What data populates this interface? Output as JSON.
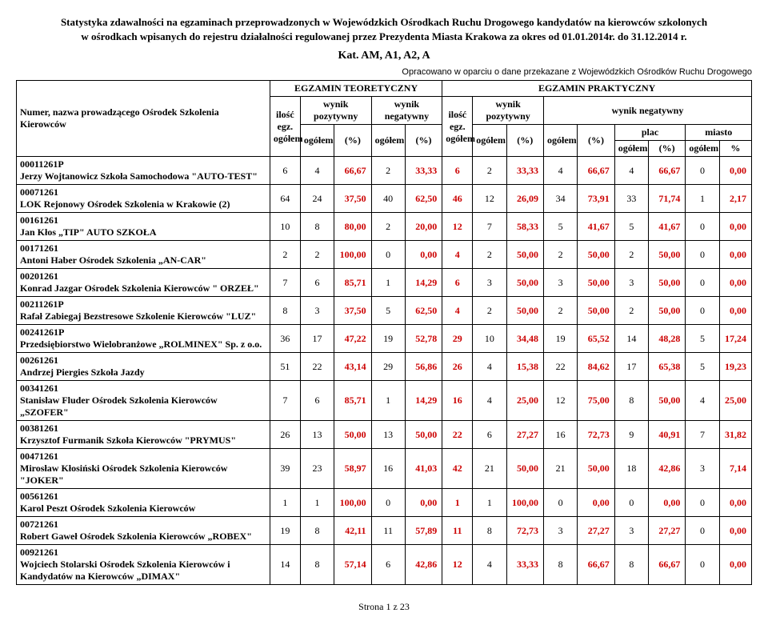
{
  "header": {
    "title_line1": "Statystyka zdawalności na egzaminach przeprowadzonych w Wojewódzkich Ośrodkach Ruchu Drogowego kandydatów na kierowców szkolonych",
    "title_line2": "w ośrodkach wpisanych do rejestru działalności regulowanej przez Prezydenta Miasta Krakowa za okres od 01.01.2014r. do 31.12.2014 r.",
    "category": "Kat. AM, A1, A2, A",
    "source_note": "Opracowano w oparciu o dane przekazane z Wojewódzkich Ośrodków Ruchu Drogowego"
  },
  "columns": {
    "name_header": "Numer, nazwa prowadzącego Ośrodek Szkolenia Kierowców",
    "teor": "EGZAMIN TEORETYCZNY",
    "prakt": "EGZAMIN PRAKTYCZNY",
    "ilosc_egz": "ilość egz. ogółem",
    "wynik_poz": "wynik pozytywny",
    "wynik_neg": "wynik negatywny",
    "ogolem": "ogółem",
    "pct": "(%)",
    "plac": "plac",
    "miasto": "miasto",
    "pct_sym": "%"
  },
  "rows": [
    {
      "name": "00011261P\nJerzy Wojtanowicz Szkoła Samochodowa \"AUTO-TEST\"",
      "t_total": "6",
      "t_poz": "4",
      "t_poz_p": "66,67",
      "t_neg": "2",
      "t_neg_p": "33,33",
      "p_total": "6",
      "p_poz": "2",
      "p_poz_p": "33,33",
      "p_neg": "4",
      "p_neg_p": "66,67",
      "plac": "4",
      "plac_p": "66,67",
      "miasto": "0",
      "miasto_p": "0,00"
    },
    {
      "name": "00071261\nLOK Rejonowy Ośrodek Szkolenia w Krakowie (2)",
      "t_total": "64",
      "t_poz": "24",
      "t_poz_p": "37,50",
      "t_neg": "40",
      "t_neg_p": "62,50",
      "p_total": "46",
      "p_poz": "12",
      "p_poz_p": "26,09",
      "p_neg": "34",
      "p_neg_p": "73,91",
      "plac": "33",
      "plac_p": "71,74",
      "miasto": "1",
      "miasto_p": "2,17"
    },
    {
      "name": "00161261\nJan Kłos „TIP\" AUTO SZKOŁA",
      "t_total": "10",
      "t_poz": "8",
      "t_poz_p": "80,00",
      "t_neg": "2",
      "t_neg_p": "20,00",
      "p_total": "12",
      "p_poz": "7",
      "p_poz_p": "58,33",
      "p_neg": "5",
      "p_neg_p": "41,67",
      "plac": "5",
      "plac_p": "41,67",
      "miasto": "0",
      "miasto_p": "0,00"
    },
    {
      "name": "00171261\nAntoni Haber Ośrodek Szkolenia „AN-CAR\"",
      "t_total": "2",
      "t_poz": "2",
      "t_poz_p": "100,00",
      "t_neg": "0",
      "t_neg_p": "0,00",
      "p_total": "4",
      "p_poz": "2",
      "p_poz_p": "50,00",
      "p_neg": "2",
      "p_neg_p": "50,00",
      "plac": "2",
      "plac_p": "50,00",
      "miasto": "0",
      "miasto_p": "0,00"
    },
    {
      "name": "00201261\nKonrad Jazgar Ośrodek Szkolenia Kierowców \" ORZEŁ\"",
      "t_total": "7",
      "t_poz": "6",
      "t_poz_p": "85,71",
      "t_neg": "1",
      "t_neg_p": "14,29",
      "p_total": "6",
      "p_poz": "3",
      "p_poz_p": "50,00",
      "p_neg": "3",
      "p_neg_p": "50,00",
      "plac": "3",
      "plac_p": "50,00",
      "miasto": "0",
      "miasto_p": "0,00"
    },
    {
      "name": "00211261P\nRafał Zabiegaj Bezstresowe Szkolenie Kierowców \"LUZ\"",
      "t_total": "8",
      "t_poz": "3",
      "t_poz_p": "37,50",
      "t_neg": "5",
      "t_neg_p": "62,50",
      "p_total": "4",
      "p_poz": "2",
      "p_poz_p": "50,00",
      "p_neg": "2",
      "p_neg_p": "50,00",
      "plac": "2",
      "plac_p": "50,00",
      "miasto": "0",
      "miasto_p": "0,00"
    },
    {
      "name": "00241261P\nPrzedsiębiorstwo Wielobranżowe „ROLMINEX\" Sp. z o.o.",
      "t_total": "36",
      "t_poz": "17",
      "t_poz_p": "47,22",
      "t_neg": "19",
      "t_neg_p": "52,78",
      "p_total": "29",
      "p_poz": "10",
      "p_poz_p": "34,48",
      "p_neg": "19",
      "p_neg_p": "65,52",
      "plac": "14",
      "plac_p": "48,28",
      "miasto": "5",
      "miasto_p": "17,24"
    },
    {
      "name": "00261261\nAndrzej Piergies Szkoła Jazdy",
      "t_total": "51",
      "t_poz": "22",
      "t_poz_p": "43,14",
      "t_neg": "29",
      "t_neg_p": "56,86",
      "p_total": "26",
      "p_poz": "4",
      "p_poz_p": "15,38",
      "p_neg": "22",
      "p_neg_p": "84,62",
      "plac": "17",
      "plac_p": "65,38",
      "miasto": "5",
      "miasto_p": "19,23"
    },
    {
      "name": "00341261\nStanisław Fluder Ośrodek Szkolenia Kierowców „SZOFER\"",
      "t_total": "7",
      "t_poz": "6",
      "t_poz_p": "85,71",
      "t_neg": "1",
      "t_neg_p": "14,29",
      "p_total": "16",
      "p_poz": "4",
      "p_poz_p": "25,00",
      "p_neg": "12",
      "p_neg_p": "75,00",
      "plac": "8",
      "plac_p": "50,00",
      "miasto": "4",
      "miasto_p": "25,00"
    },
    {
      "name": "00381261\nKrzysztof Furmanik Szkoła Kierowców \"PRYMUS\"",
      "t_total": "26",
      "t_poz": "13",
      "t_poz_p": "50,00",
      "t_neg": "13",
      "t_neg_p": "50,00",
      "p_total": "22",
      "p_poz": "6",
      "p_poz_p": "27,27",
      "p_neg": "16",
      "p_neg_p": "72,73",
      "plac": "9",
      "plac_p": "40,91",
      "miasto": "7",
      "miasto_p": "31,82"
    },
    {
      "name": "00471261\nMirosław Kłosiński Ośrodek Szkolenia Kierowców \"JOKER\"",
      "t_total": "39",
      "t_poz": "23",
      "t_poz_p": "58,97",
      "t_neg": "16",
      "t_neg_p": "41,03",
      "p_total": "42",
      "p_poz": "21",
      "p_poz_p": "50,00",
      "p_neg": "21",
      "p_neg_p": "50,00",
      "plac": "18",
      "plac_p": "42,86",
      "miasto": "3",
      "miasto_p": "7,14"
    },
    {
      "name": "00561261\nKarol Peszt Ośrodek Szkolenia Kierowców",
      "t_total": "1",
      "t_poz": "1",
      "t_poz_p": "100,00",
      "t_neg": "0",
      "t_neg_p": "0,00",
      "p_total": "1",
      "p_poz": "1",
      "p_poz_p": "100,00",
      "p_neg": "0",
      "p_neg_p": "0,00",
      "plac": "0",
      "plac_p": "0,00",
      "miasto": "0",
      "miasto_p": "0,00"
    },
    {
      "name": "00721261\nRobert Gaweł Ośrodek Szkolenia Kierowców „ROBEX\"",
      "t_total": "19",
      "t_poz": "8",
      "t_poz_p": "42,11",
      "t_neg": "11",
      "t_neg_p": "57,89",
      "p_total": "11",
      "p_poz": "8",
      "p_poz_p": "72,73",
      "p_neg": "3",
      "p_neg_p": "27,27",
      "plac": "3",
      "plac_p": "27,27",
      "miasto": "0",
      "miasto_p": "0,00"
    },
    {
      "name": "00921261\nWojciech Stolarski Ośrodek Szkolenia Kierowców i Kandydatów na Kierowców „DIMAX\"",
      "t_total": "14",
      "t_poz": "8",
      "t_poz_p": "57,14",
      "t_neg": "6",
      "t_neg_p": "42,86",
      "p_total": "12",
      "p_poz": "4",
      "p_poz_p": "33,33",
      "p_neg": "8",
      "p_neg_p": "66,67",
      "plac": "8",
      "plac_p": "66,67",
      "miasto": "0",
      "miasto_p": "0,00"
    }
  ],
  "styling": {
    "highlight_color": "#cc0000",
    "border_color": "#000000",
    "background_color": "#ffffff"
  },
  "pager": "Strona 1 z 23"
}
